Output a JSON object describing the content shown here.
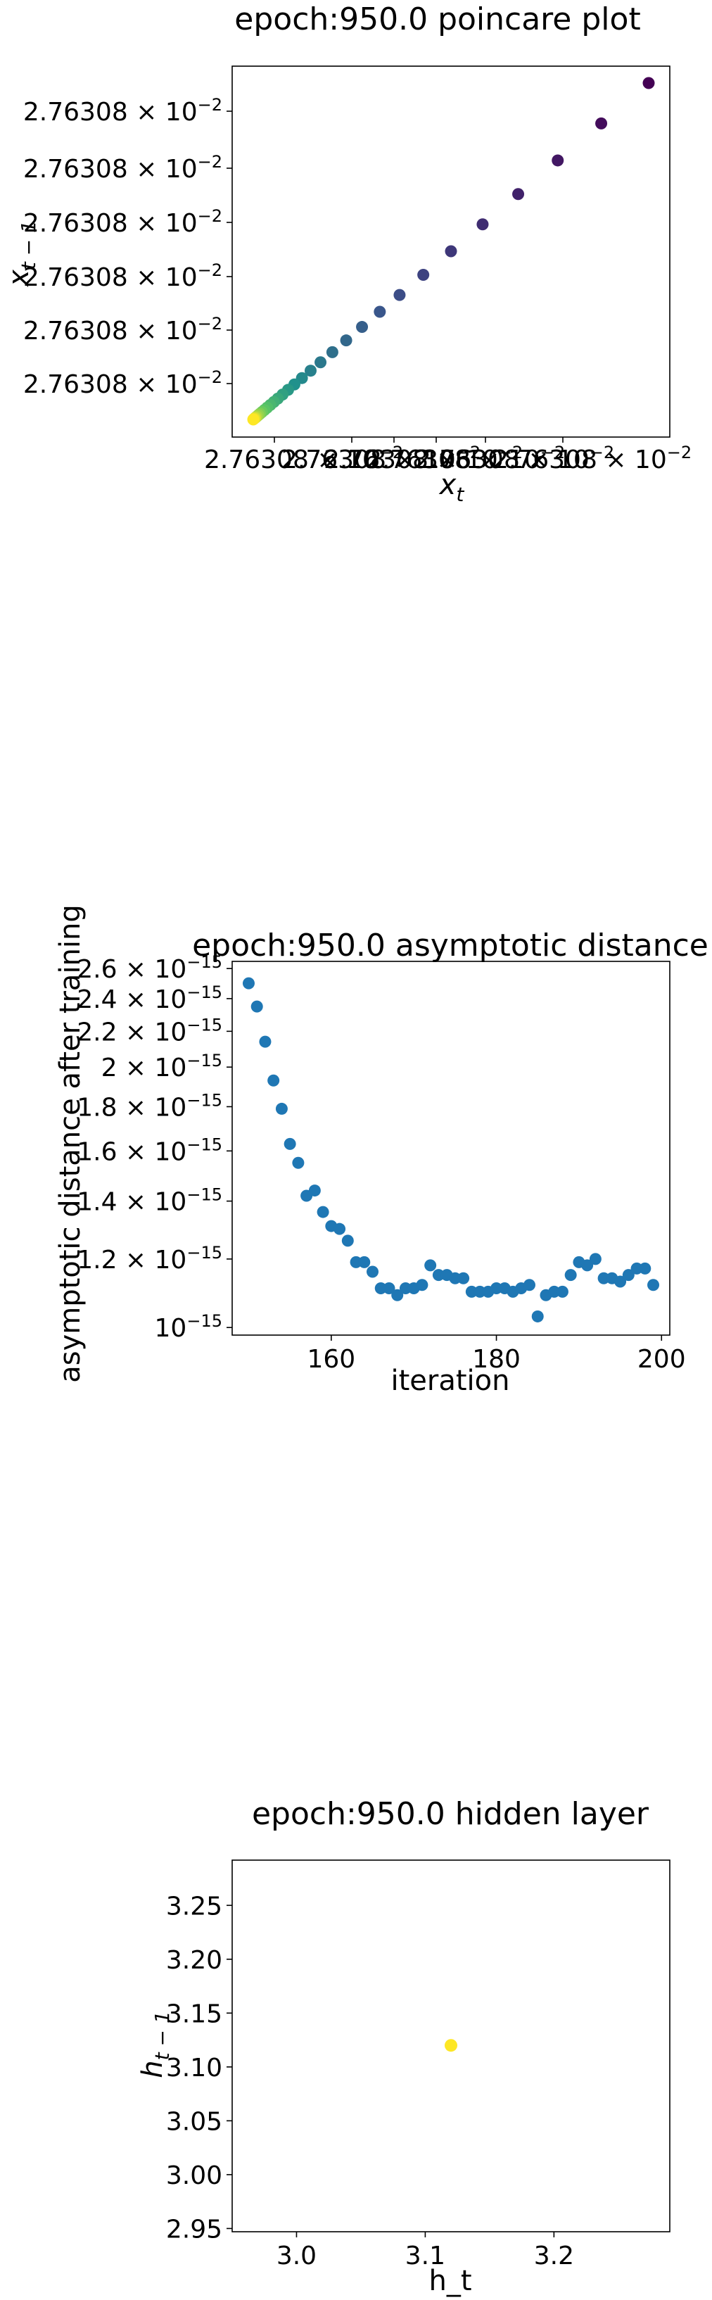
{
  "chart_data": [
    {
      "type": "scatter",
      "title": "epoch:950.0 poincare plot",
      "xlabel_base": "x",
      "xlabel_sub": "t",
      "ylabel_base": "x",
      "ylabel_sub": "t − 1",
      "colormap": "viridis",
      "x_tick_labels": [
        "2.76308 × 10",
        "2.76308 × 10",
        "2.76308 × 10",
        "2.76308 × 10",
        "2.76308 × 10",
        "2.76308 × 10"
      ],
      "x_tick_exponent": "−2",
      "y_tick_labels": [
        "2.76308 × 10",
        "2.76308 × 10",
        "2.76308 × 10",
        "2.76308 × 10",
        "2.76308 × 10",
        "2.76308 × 10"
      ],
      "y_tick_exponent": "−2",
      "grid": false,
      "x_scale": "log",
      "y_scale": "log",
      "notes_color": "points colored dark purple (early) to yellow (late)",
      "x": [
        1.0,
        0.88,
        0.77,
        0.67,
        0.58,
        0.5,
        0.43,
        0.37,
        0.32,
        0.275,
        0.235,
        0.2,
        0.17,
        0.145,
        0.123,
        0.104,
        0.088,
        0.074,
        0.062,
        0.052,
        0.043,
        0.035,
        0.028,
        0.022,
        0.017,
        0.013,
        0.009,
        0.006,
        0.004,
        0.002,
        0.0
      ],
      "y": [
        1.0,
        0.88,
        0.77,
        0.67,
        0.58,
        0.5,
        0.43,
        0.37,
        0.32,
        0.275,
        0.235,
        0.2,
        0.17,
        0.145,
        0.123,
        0.104,
        0.088,
        0.074,
        0.062,
        0.052,
        0.043,
        0.035,
        0.028,
        0.022,
        0.017,
        0.013,
        0.009,
        0.006,
        0.004,
        0.002,
        0.0
      ]
    },
    {
      "type": "scatter",
      "title": "epoch:950.0 asymptotic distance",
      "xlabel": "iteration",
      "ylabel": "asymptotic distance after training",
      "y_scale": "log",
      "xlim": [
        148,
        201
      ],
      "ylim": [
        9.8e-16,
        2.65e-15
      ],
      "x_ticks": [
        160,
        180,
        200
      ],
      "y_tick_labels": [
        {
          "value": 2.6e-15,
          "mant": "2.6 × 10",
          "exp": "−15"
        },
        {
          "value": 2.4e-15,
          "mant": "2.4 × 10",
          "exp": "−15"
        },
        {
          "value": 2.2e-15,
          "mant": "2.2 × 10",
          "exp": "−15"
        },
        {
          "value": 2e-15,
          "mant": "2 × 10",
          "exp": "−15"
        },
        {
          "value": 1.8e-15,
          "mant": "1.8 × 10",
          "exp": "−15"
        },
        {
          "value": 1.6e-15,
          "mant": "1.6 × 10",
          "exp": "−15"
        },
        {
          "value": 1.4e-15,
          "mant": "1.4 × 10",
          "exp": "−15"
        },
        {
          "value": 1.2e-15,
          "mant": "1.2 × 10",
          "exp": "−15"
        },
        {
          "value": 1e-15,
          "mant": "10",
          "exp": "−15"
        }
      ],
      "color": "#1f77b4",
      "x": [
        150,
        151,
        152,
        153,
        154,
        155,
        156,
        157,
        158,
        159,
        160,
        161,
        162,
        163,
        164,
        165,
        166,
        167,
        168,
        169,
        170,
        171,
        172,
        173,
        174,
        175,
        176,
        177,
        178,
        179,
        180,
        181,
        182,
        183,
        184,
        185,
        186,
        187,
        188,
        189,
        190,
        191,
        192,
        193,
        194,
        195,
        196,
        197,
        198,
        199
      ],
      "y": [
        2.5e-15,
        2.35e-15,
        2.14e-15,
        1.93e-15,
        1.79e-15,
        1.63e-15,
        1.55e-15,
        1.42e-15,
        1.44e-15,
        1.36e-15,
        1.31e-15,
        1.3e-15,
        1.26e-15,
        1.19e-15,
        1.19e-15,
        1.16e-15,
        1.11e-15,
        1.11e-15,
        1.09e-15,
        1.11e-15,
        1.11e-15,
        1.12e-15,
        1.18e-15,
        1.15e-15,
        1.15e-15,
        1.14e-15,
        1.14e-15,
        1.1e-15,
        1.1e-15,
        1.1e-15,
        1.11e-15,
        1.11e-15,
        1.1e-15,
        1.11e-15,
        1.12e-15,
        1.03e-15,
        1.09e-15,
        1.1e-15,
        1.1e-15,
        1.15e-15,
        1.19e-15,
        1.18e-15,
        1.2e-15,
        1.14e-15,
        1.14e-15,
        1.13e-15,
        1.15e-15,
        1.17e-15,
        1.17e-15,
        1.12e-15
      ]
    },
    {
      "type": "scatter",
      "title": "epoch:950.0 hidden layer",
      "xlabel": "h_t",
      "ylabel_base": "h",
      "ylabel_sub": "t − 1",
      "xlim": [
        2.95,
        3.29
      ],
      "ylim": [
        2.947,
        3.292
      ],
      "x_ticks": [
        "3.0",
        "3.1",
        "3.2"
      ],
      "x_tick_values": [
        3.0,
        3.1,
        3.2
      ],
      "y_ticks": [
        "2.95",
        "3.00",
        "3.05",
        "3.10",
        "3.15",
        "3.20",
        "3.25"
      ],
      "y_tick_values": [
        2.95,
        3.0,
        3.05,
        3.1,
        3.15,
        3.2,
        3.25
      ],
      "color": "#fde725",
      "x": [
        3.12
      ],
      "y": [
        3.12
      ]
    }
  ]
}
